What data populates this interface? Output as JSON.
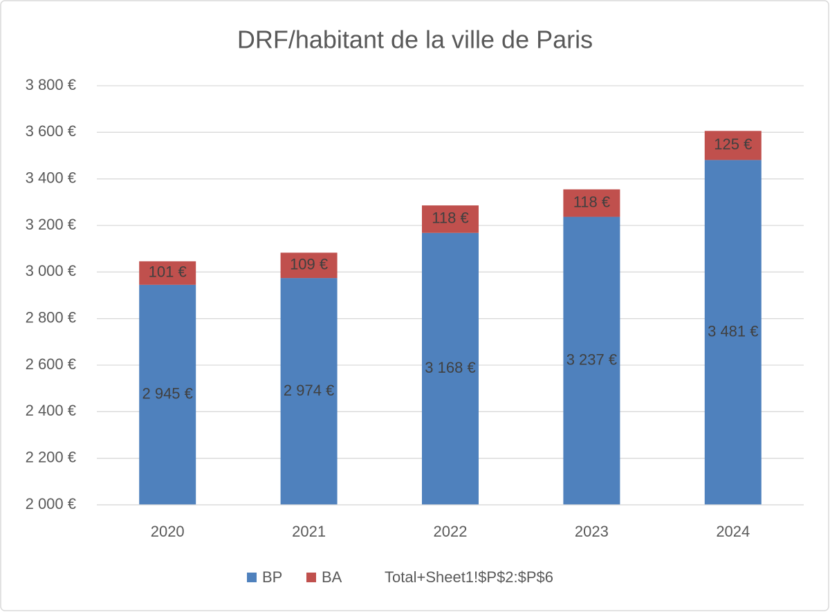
{
  "chart_data": {
    "type": "stacked_bar",
    "title": "DRF/habitant de la ville de Paris",
    "categories": [
      "2020",
      "2021",
      "2022",
      "2023",
      "2024"
    ],
    "series": [
      {
        "name": "BP",
        "color": "#4f81bd",
        "values": [
          2945,
          2974,
          3168,
          3237,
          3481
        ],
        "value_labels": [
          "2 945 €",
          "2 974 €",
          "3 168 €",
          "3 237 €",
          "3 481 €"
        ]
      },
      {
        "name": "BA",
        "color": "#c0504d",
        "values": [
          101,
          109,
          118,
          118,
          125
        ],
        "value_labels": [
          "101 €",
          "109 €",
          "118 €",
          "118 €",
          "125 €"
        ]
      },
      {
        "name": "Total+Sheet1!$P$2:$P$6",
        "values": [
          null,
          null,
          null,
          null,
          null
        ]
      }
    ],
    "ylim": [
      2000,
      3800
    ],
    "yticks": [
      {
        "value": 2000,
        "label": "2 000 €"
      },
      {
        "value": 2200,
        "label": "2 200 €"
      },
      {
        "value": 2400,
        "label": "2 400 €"
      },
      {
        "value": 2600,
        "label": "2 600 €"
      },
      {
        "value": 2800,
        "label": "2 800 €"
      },
      {
        "value": 3000,
        "label": "3 000 €"
      },
      {
        "value": 3200,
        "label": "3 200 €"
      },
      {
        "value": 3400,
        "label": "3 400 €"
      },
      {
        "value": 3600,
        "label": "3 600 €"
      },
      {
        "value": 3800,
        "label": "3 800 €"
      }
    ],
    "grid": true,
    "legend": "bottom"
  }
}
